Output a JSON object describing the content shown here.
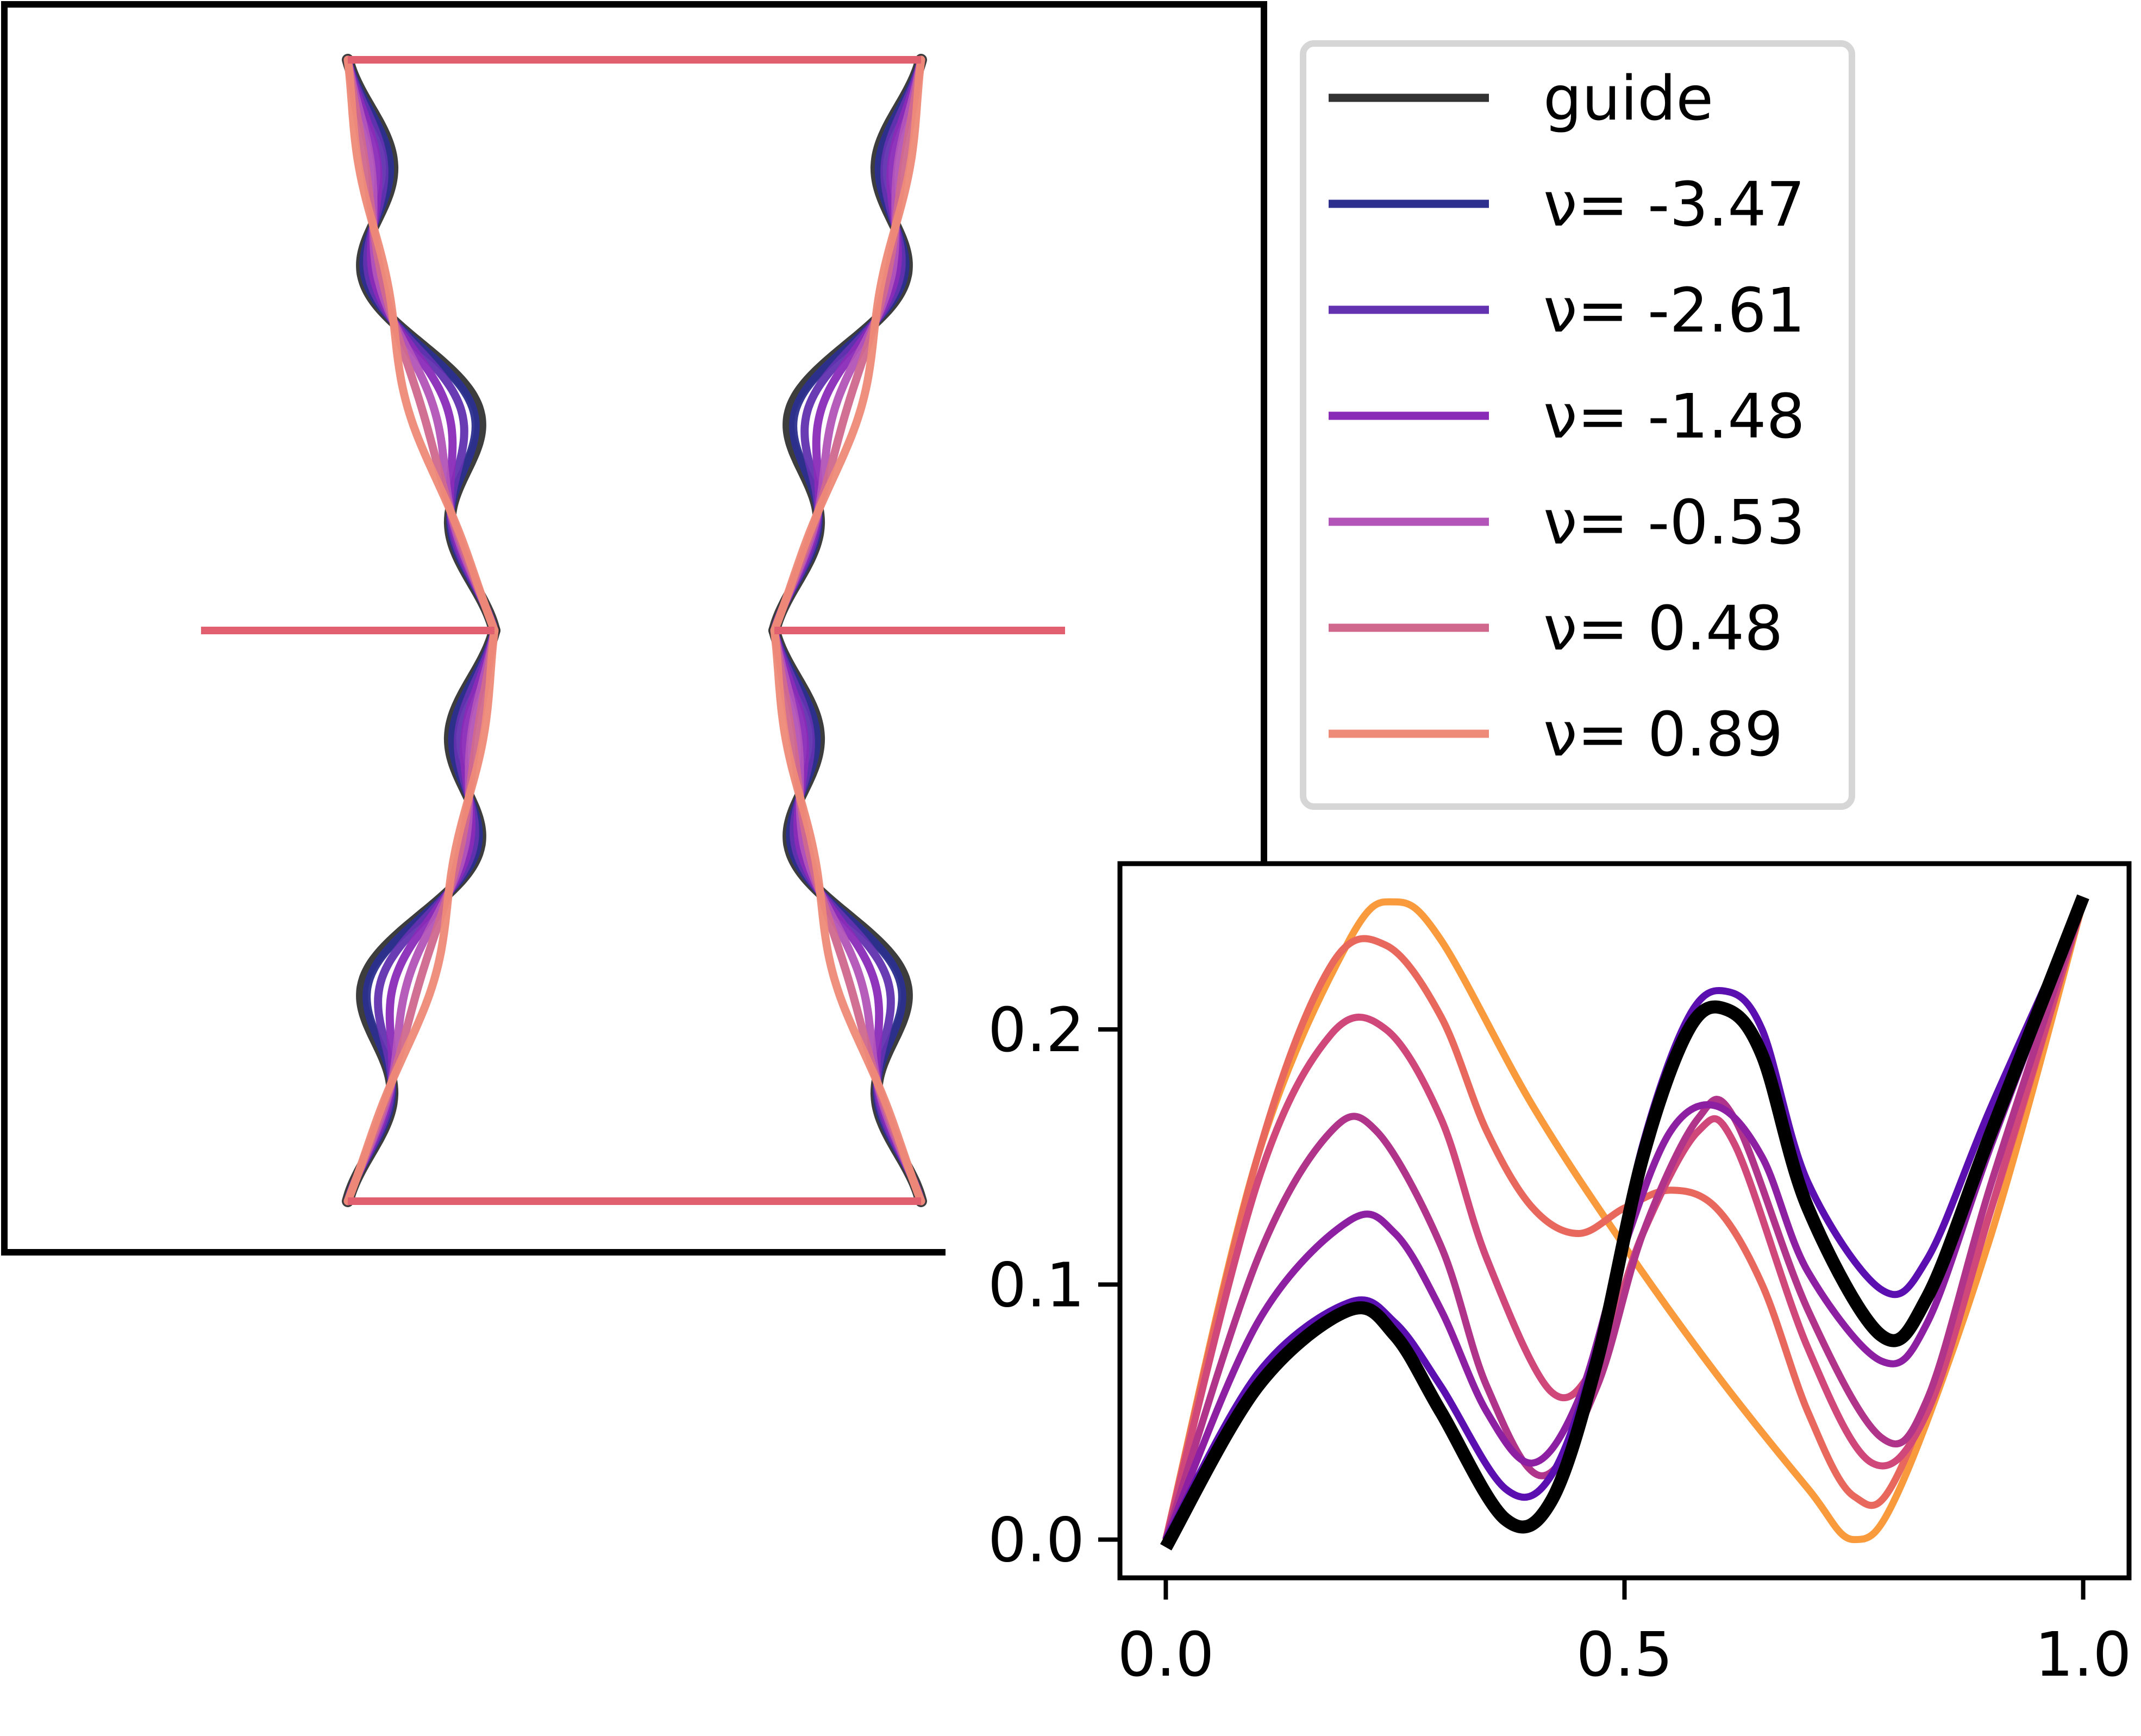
{
  "chart_data": [
    {
      "type": "line",
      "title": "",
      "description_of_content": "",
      "series": [
        {
          "name": "guide",
          "color": "#333333"
        },
        {
          "name": "ν= -3.47",
          "color": "#2c2f8e"
        },
        {
          "name": "ν= -2.61",
          "color": "#6232b0"
        },
        {
          "name": "ν= -1.48",
          "color": "#8a2bb8"
        },
        {
          "name": "ν= -0.53",
          "color": "#b254b8"
        },
        {
          "name": "ν= 0.48",
          "color": "#d0688e"
        },
        {
          "name": "ν= 0.89",
          "color": "#ee8a78"
        }
      ],
      "frame_color": "#e06070",
      "legend": {
        "position": "top-right",
        "frame": true
      },
      "axes_visible": false
    },
    {
      "type": "line",
      "xlabel": "",
      "ylabel": "",
      "xlim": [
        -0.05,
        1.05
      ],
      "ylim": [
        -0.015,
        0.265
      ],
      "xticks": [
        0.0,
        0.5,
        1.0
      ],
      "xtick_labels": [
        "0.0",
        "0.5",
        "1.0"
      ],
      "yticks": [
        0.0,
        0.1,
        0.2
      ],
      "ytick_labels": [
        "0.0",
        "0.1",
        "0.2"
      ],
      "grid": false,
      "series": [
        {
          "name": "",
          "color": "#f99a3c",
          "x": [
            0,
            0.1,
            0.2,
            0.25,
            0.3,
            0.4,
            0.5,
            0.6,
            0.7,
            0.75,
            0.8,
            0.9,
            1.0
          ],
          "y": [
            0,
            0.15,
            0.235,
            0.25,
            0.235,
            0.17,
            0.115,
            0.065,
            0.02,
            0.0,
            0.02,
            0.12,
            0.25
          ]
        },
        {
          "name": "",
          "color": "#e8685e",
          "x": [
            0,
            0.1,
            0.18,
            0.24,
            0.3,
            0.35,
            0.4,
            0.45,
            0.5,
            0.55,
            0.6,
            0.65,
            0.7,
            0.75,
            0.8,
            0.9,
            1.0
          ],
          "y": [
            0,
            0.15,
            0.225,
            0.233,
            0.205,
            0.16,
            0.13,
            0.12,
            0.13,
            0.137,
            0.13,
            0.1,
            0.05,
            0.017,
            0.027,
            0.13,
            0.25
          ]
        },
        {
          "name": "",
          "color": "#d0487a",
          "x": [
            0,
            0.1,
            0.18,
            0.24,
            0.3,
            0.35,
            0.42,
            0.47,
            0.52,
            0.58,
            0.62,
            0.7,
            0.77,
            0.83,
            0.9,
            1.0
          ],
          "y": [
            0,
            0.14,
            0.198,
            0.2,
            0.165,
            0.11,
            0.058,
            0.07,
            0.12,
            0.16,
            0.155,
            0.075,
            0.03,
            0.05,
            0.13,
            0.25
          ]
        },
        {
          "name": "",
          "color": "#b0358a",
          "x": [
            0,
            0.1,
            0.18,
            0.23,
            0.3,
            0.35,
            0.41,
            0.47,
            0.52,
            0.58,
            0.62,
            0.7,
            0.78,
            0.83,
            0.9,
            1.0
          ],
          "y": [
            0,
            0.11,
            0.16,
            0.16,
            0.115,
            0.06,
            0.025,
            0.06,
            0.12,
            0.165,
            0.165,
            0.09,
            0.04,
            0.055,
            0.14,
            0.25
          ]
        },
        {
          "name": "",
          "color": "#8c1fa2",
          "x": [
            0,
            0.1,
            0.2,
            0.25,
            0.3,
            0.35,
            0.4,
            0.45,
            0.5,
            0.55,
            0.6,
            0.65,
            0.7,
            0.78,
            0.83,
            0.9,
            1.0
          ],
          "y": [
            0,
            0.085,
            0.125,
            0.12,
            0.09,
            0.05,
            0.03,
            0.055,
            0.115,
            0.16,
            0.17,
            0.15,
            0.105,
            0.07,
            0.085,
            0.155,
            0.25
          ]
        },
        {
          "name": "",
          "color": "#5c0fb0",
          "x": [
            0,
            0.1,
            0.2,
            0.25,
            0.3,
            0.37,
            0.42,
            0.47,
            0.52,
            0.57,
            0.61,
            0.65,
            0.7,
            0.78,
            0.83,
            0.9,
            1.0
          ],
          "y": [
            0,
            0.065,
            0.093,
            0.085,
            0.06,
            0.02,
            0.025,
            0.075,
            0.155,
            0.205,
            0.215,
            0.2,
            0.14,
            0.098,
            0.11,
            0.17,
            0.25
          ]
        },
        {
          "name": "",
          "color": "#000000",
          "x": [
            0,
            0.1,
            0.2,
            0.25,
            0.3,
            0.37,
            0.42,
            0.47,
            0.52,
            0.57,
            0.61,
            0.65,
            0.7,
            0.78,
            0.83,
            0.9,
            1.0
          ],
          "y": [
            -0.003,
            0.06,
            0.09,
            0.08,
            0.05,
            0.008,
            0.015,
            0.07,
            0.15,
            0.2,
            0.208,
            0.19,
            0.13,
            0.08,
            0.095,
            0.16,
            0.252
          ]
        }
      ]
    }
  ]
}
